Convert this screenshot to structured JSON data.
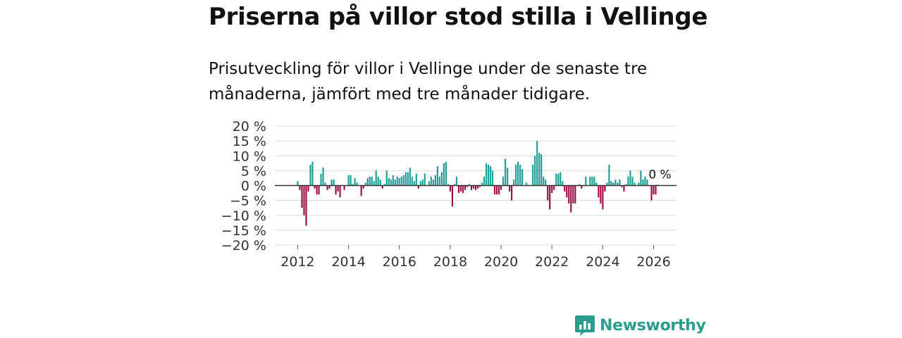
{
  "header": {
    "title": "Priserna på villor stod stilla i Vellinge",
    "subtitle": "Prisutveckling för villor i Vellinge under de senaste tre månaderna, jämfört med tre månader tidigare."
  },
  "branding": {
    "name": "Newsworthy",
    "color": "#2a9d8f"
  },
  "chart_data": {
    "type": "bar",
    "title": "Priserna på villor stod stilla i Vellinge",
    "ylabel": "",
    "xlabel": "",
    "ylim": [
      -20,
      20
    ],
    "yticks": [
      20,
      15,
      10,
      5,
      0,
      -5,
      -10,
      -15,
      -20
    ],
    "ytick_labels": [
      "20 %",
      "15 %",
      "10 %",
      "5 %",
      "0 %",
      "−5 %",
      "−10 %",
      "−15 %",
      "−20 %"
    ],
    "xticks": [
      2012,
      2014,
      2016,
      2018,
      2020,
      2022,
      2024,
      2026
    ],
    "x_range": [
      2011.1,
      2026.9
    ],
    "colors": {
      "positive": "#1e9e96",
      "negative": "#9b0d45",
      "zero_line": "#333333",
      "grid": "#dcdcdc"
    },
    "last_label": "0 %",
    "start": 2012.0,
    "step": 0.08333,
    "values": [
      1.5,
      -1.5,
      -7.5,
      -10,
      -13.5,
      -2,
      7,
      8,
      -1,
      -3,
      -3,
      4,
      6,
      1,
      -1.5,
      -1,
      2,
      2,
      -3,
      -2,
      -4,
      0,
      -1.5,
      0,
      3.5,
      3.5,
      0.5,
      2.5,
      1,
      0,
      -3.5,
      -1,
      1,
      2.5,
      3,
      3,
      1.5,
      5,
      3,
      2,
      -1,
      0.5,
      5,
      2.5,
      2,
      3.5,
      2,
      3,
      2.5,
      3,
      3.5,
      4.5,
      4.5,
      6,
      3,
      1.5,
      4,
      -1,
      1.5,
      2,
      4,
      0,
      1.5,
      3,
      2,
      3.5,
      6.5,
      3,
      4.5,
      7.5,
      8,
      0.5,
      -2,
      -7,
      0.5,
      3,
      -2.5,
      -2,
      -2.5,
      -1.5,
      -0.5,
      0.5,
      -1.5,
      -1,
      -1.5,
      -1,
      -0.5,
      1,
      3,
      7.5,
      7,
      6.5,
      5,
      -3,
      -3,
      -3,
      -1.5,
      3,
      9,
      6,
      -2,
      -5,
      2,
      7,
      8,
      7,
      5.5,
      0,
      1,
      0,
      0,
      7,
      10,
      15,
      11,
      10.5,
      3,
      2,
      -5,
      -8,
      -2.5,
      -1.5,
      4,
      4,
      4.5,
      1.5,
      -2,
      -4,
      -6,
      -9,
      -6,
      -6,
      0,
      0.5,
      -1,
      0,
      3,
      0,
      3,
      3,
      3,
      1,
      -4,
      -6,
      -8,
      -2,
      1,
      7,
      1.5,
      1,
      2,
      1,
      2,
      -0.5,
      -2,
      0.5,
      3,
      5,
      3,
      1,
      0,
      1,
      5,
      2,
      3,
      2,
      0,
      -5,
      -3,
      -3,
      0.3
    ]
  }
}
